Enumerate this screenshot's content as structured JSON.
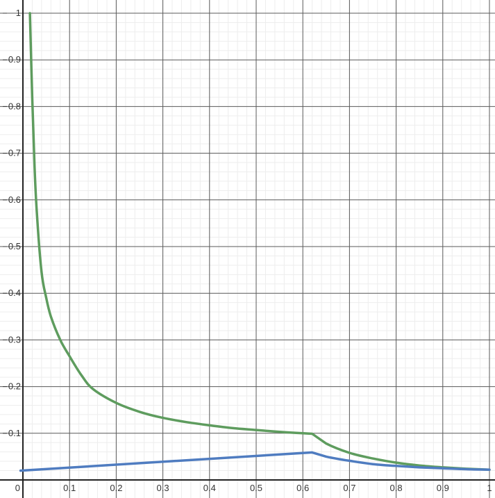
{
  "chart_data": {
    "type": "line",
    "title": "",
    "xlabel": "",
    "ylabel": "",
    "xlim": [
      -0.005,
      1.0
    ],
    "ylim": [
      0,
      1.0
    ],
    "grid": true,
    "x_ticks": [
      {
        "v": 0,
        "label": "0"
      },
      {
        "v": 0.1,
        "label": "0.1"
      },
      {
        "v": 0.2,
        "label": "0.2"
      },
      {
        "v": 0.3,
        "label": "0.3"
      },
      {
        "v": 0.4,
        "label": "0.4"
      },
      {
        "v": 0.5,
        "label": "0.5"
      },
      {
        "v": 0.6,
        "label": "0.6"
      },
      {
        "v": 0.7,
        "label": "0.7"
      },
      {
        "v": 0.8,
        "label": "0.8"
      },
      {
        "v": 0.9,
        "label": "0.9"
      },
      {
        "v": 1.0,
        "label": "1"
      }
    ],
    "y_ticks": [
      {
        "v": 0.1,
        "label": "0.1"
      },
      {
        "v": 0.2,
        "label": "0.2"
      },
      {
        "v": 0.3,
        "label": "0.3"
      },
      {
        "v": 0.4,
        "label": "0.4"
      },
      {
        "v": 0.5,
        "label": "0.5"
      },
      {
        "v": 0.6,
        "label": "0.6"
      },
      {
        "v": 0.7,
        "label": "0.7"
      },
      {
        "v": 0.8,
        "label": "0.8"
      },
      {
        "v": 0.9,
        "label": "0.9"
      },
      {
        "v": 1.0,
        "label": "1"
      }
    ],
    "series": [
      {
        "color": "#5e9c5e",
        "x": [
          0.015,
          0.02,
          0.025,
          0.03,
          0.04,
          0.05,
          0.06,
          0.08,
          0.1,
          0.125,
          0.15,
          0.2,
          0.25,
          0.3,
          0.35,
          0.4,
          0.45,
          0.5,
          0.55,
          0.6,
          0.62,
          0.65,
          0.7,
          0.75,
          0.8,
          0.85,
          0.9,
          0.95,
          1.0
        ],
        "y": [
          1.0,
          0.82,
          0.67,
          0.57,
          0.445,
          0.39,
          0.35,
          0.3,
          0.265,
          0.225,
          0.195,
          0.165,
          0.146,
          0.133,
          0.124,
          0.117,
          0.111,
          0.107,
          0.103,
          0.1,
          0.099,
          0.078,
          0.058,
          0.046,
          0.037,
          0.031,
          0.027,
          0.024,
          0.022
        ]
      },
      {
        "color": "#4f7cc0",
        "x": [
          -0.005,
          0.62,
          0.65,
          0.7,
          0.75,
          0.8,
          0.85,
          0.9,
          0.95,
          1.0
        ],
        "y": [
          0.02,
          0.059,
          0.05,
          0.041,
          0.034,
          0.03,
          0.027,
          0.025,
          0.023,
          0.022
        ]
      }
    ]
  }
}
